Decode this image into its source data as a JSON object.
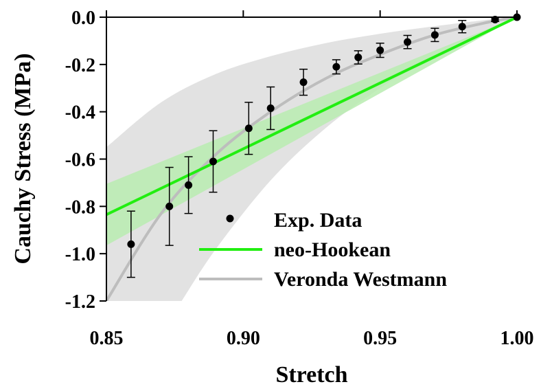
{
  "chart_data": {
    "type": "scatter",
    "xlabel": "Stretch",
    "ylabel": "Cauchy Stress (MPa)",
    "xlim": [
      0.85,
      1.0
    ],
    "ylim": [
      -1.2,
      0.0
    ],
    "xticks": [
      "0.85",
      "0.90",
      "0.95",
      "1.00"
    ],
    "yticks": [
      "0.0",
      "-0.2",
      "-0.4",
      "-0.6",
      "-0.8",
      "-1.0",
      "-1.2"
    ],
    "grid": false,
    "legend_position": "bottom-right",
    "series": [
      {
        "name": "Exp. Data",
        "kind": "points-with-error-bars",
        "color": "#000000",
        "points": [
          {
            "x": 0.859,
            "y": -0.96,
            "err": 0.14
          },
          {
            "x": 0.873,
            "y": -0.8,
            "err": 0.165
          },
          {
            "x": 0.88,
            "y": -0.71,
            "err": 0.12
          },
          {
            "x": 0.889,
            "y": -0.61,
            "err": 0.13
          },
          {
            "x": 0.902,
            "y": -0.47,
            "err": 0.11
          },
          {
            "x": 0.91,
            "y": -0.385,
            "err": 0.09
          },
          {
            "x": 0.922,
            "y": -0.275,
            "err": 0.055
          },
          {
            "x": 0.934,
            "y": -0.21,
            "err": 0.03
          },
          {
            "x": 0.942,
            "y": -0.17,
            "err": 0.028
          },
          {
            "x": 0.95,
            "y": -0.14,
            "err": 0.03
          },
          {
            "x": 0.96,
            "y": -0.105,
            "err": 0.028
          },
          {
            "x": 0.97,
            "y": -0.075,
            "err": 0.028
          },
          {
            "x": 0.98,
            "y": -0.04,
            "err": 0.026
          },
          {
            "x": 0.992,
            "y": -0.01,
            "err": 0.008
          },
          {
            "x": 1.0,
            "y": 0.0,
            "err": 0.0
          }
        ]
      },
      {
        "name": "neo-Hookean",
        "kind": "line",
        "color": "#22ee11",
        "x": [
          0.85,
          1.0
        ],
        "y": [
          -0.835,
          0.0
        ],
        "band_color": "#b8ecb0",
        "band_upper": [
          -0.705,
          0.0
        ],
        "band_lower": [
          -0.965,
          0.0
        ]
      },
      {
        "name": "Veronda Westmann",
        "kind": "curve",
        "color": "#bdbdbd",
        "x": [
          0.85,
          0.87,
          0.89,
          0.91,
          0.93,
          0.95,
          0.97,
          0.99,
          1.0
        ],
        "y": [
          -1.2,
          -0.83,
          -0.58,
          -0.4,
          -0.26,
          -0.158,
          -0.075,
          -0.02,
          0.0
        ],
        "band_color": "#e2e2e2",
        "band_upper_x": [
          0.85,
          0.87,
          0.89,
          0.91,
          0.93,
          0.95,
          0.97,
          0.99,
          1.0
        ],
        "band_upper_y": [
          -0.55,
          -0.36,
          -0.24,
          -0.165,
          -0.11,
          -0.07,
          -0.038,
          -0.01,
          0.0
        ],
        "band_lower_x": [
          0.8775,
          0.89,
          0.91,
          0.93,
          0.95,
          0.97,
          0.99,
          1.0
        ],
        "band_lower_y": [
          -1.2,
          -0.98,
          -0.69,
          -0.47,
          -0.3,
          -0.16,
          -0.05,
          0.0
        ]
      }
    ]
  }
}
